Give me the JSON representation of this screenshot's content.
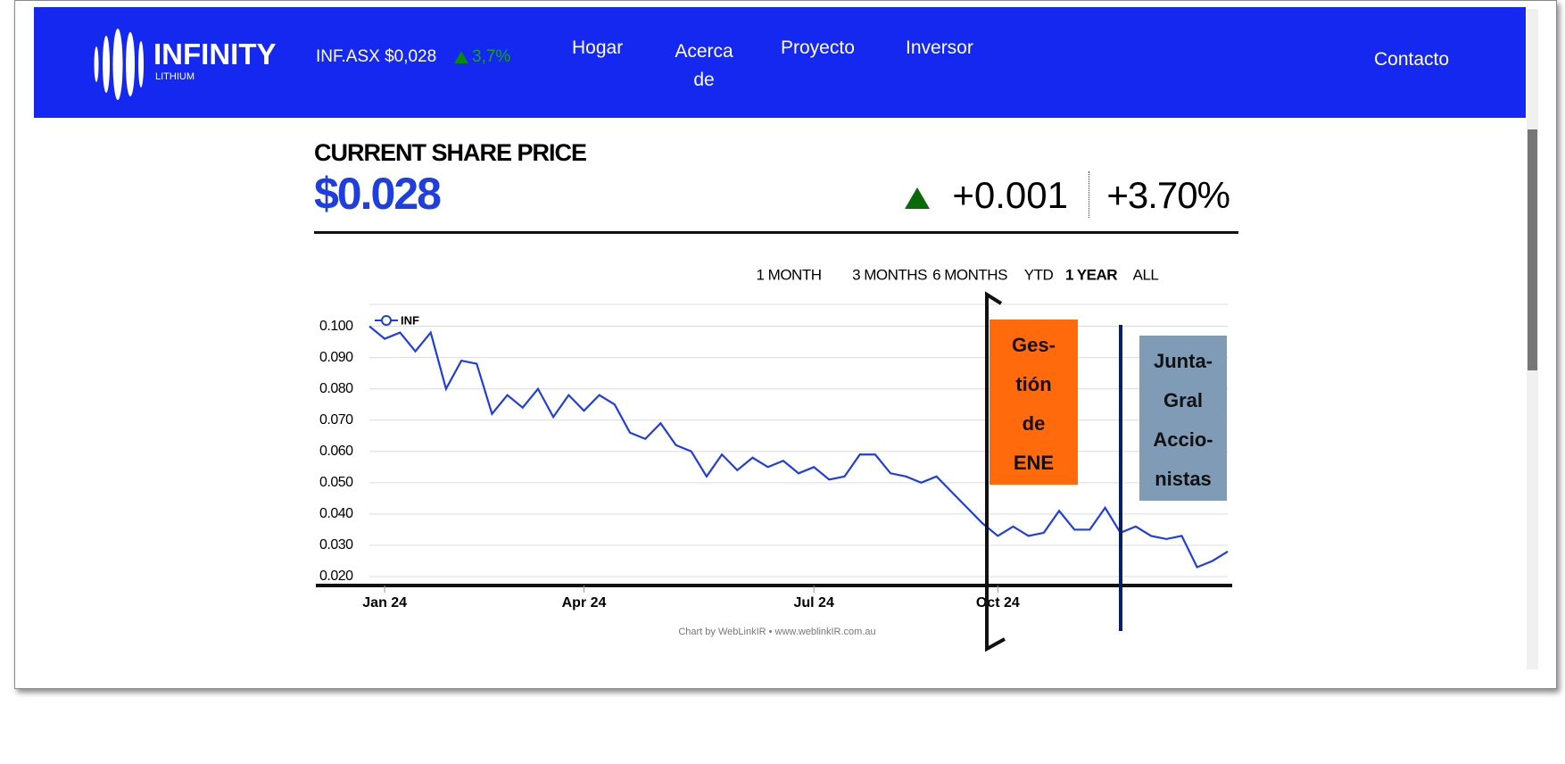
{
  "nav": {
    "logo": "INFINITY",
    "logo_sub": "LITHIUM",
    "ticker": "INF.ASX $0,028",
    "ticker_change": "3,7%",
    "links": [
      "Hogar",
      "Acerca de",
      "Proyecto",
      "Inversor"
    ],
    "contact": "Contacto"
  },
  "header": {
    "title": "CURRENT SHARE PRICE",
    "price": "$0.028",
    "change": "+0.001",
    "change_pct": "+3.70%"
  },
  "range_buttons": [
    "1 MONTH",
    "3 MONTHS",
    "6 MONTHS",
    "YTD",
    "1 YEAR",
    "ALL"
  ],
  "chart_data": {
    "type": "line",
    "x": [
      0,
      1,
      2,
      3,
      4,
      5,
      6,
      7,
      8,
      9,
      10,
      11,
      12,
      13,
      14,
      15,
      16,
      17,
      18,
      19,
      20,
      21,
      22,
      23,
      24,
      25,
      26,
      27,
      28,
      29,
      30,
      31,
      32,
      33,
      34,
      35,
      36,
      37,
      38,
      39,
      40,
      41,
      42,
      43,
      44,
      45,
      46,
      47,
      48,
      49,
      50,
      51,
      52,
      53,
      54,
      55,
      56
    ],
    "series": [
      {
        "name": "INF",
        "color": "#1f3ee0",
        "values": [
          0.1,
          0.096,
          0.098,
          0.092,
          0.098,
          0.08,
          0.089,
          0.088,
          0.072,
          0.078,
          0.074,
          0.08,
          0.071,
          0.078,
          0.073,
          0.078,
          0.075,
          0.066,
          0.064,
          0.069,
          0.062,
          0.06,
          0.052,
          0.059,
          0.054,
          0.058,
          0.055,
          0.057,
          0.053,
          0.055,
          0.051,
          0.052,
          0.059,
          0.059,
          0.053,
          0.052,
          0.05,
          0.052,
          0.047,
          0.042,
          0.037,
          0.033,
          0.036,
          0.033,
          0.034,
          0.041,
          0.035,
          0.035,
          0.042,
          0.034,
          0.036,
          0.033,
          0.032,
          0.033,
          0.023,
          0.025,
          0.028
        ]
      }
    ],
    "xlim": [
      0,
      56
    ],
    "xticks": [
      {
        "value": 1,
        "label": "Jan 24"
      },
      {
        "value": 14,
        "label": "Apr 24"
      },
      {
        "value": 29,
        "label": "Jul 24"
      },
      {
        "value": 41,
        "label": "Oct 24"
      }
    ],
    "ylim": [
      0.02,
      0.107
    ],
    "yticks": [
      {
        "value": 0.1,
        "label": "0.100"
      },
      {
        "value": 0.09,
        "label": "0.090"
      },
      {
        "value": 0.08,
        "label": "0.080"
      },
      {
        "value": 0.07,
        "label": "0.070"
      },
      {
        "value": 0.06,
        "label": "0.060"
      },
      {
        "value": 0.05,
        "label": "0.050"
      },
      {
        "value": 0.04,
        "label": "0.040"
      },
      {
        "value": 0.03,
        "label": "0.030"
      },
      {
        "value": 0.02,
        "label": "0.020"
      }
    ],
    "grid": true,
    "annotations": [
      {
        "lines": [
          "Ges-",
          "tión",
          "de",
          "ENE"
        ],
        "color": "#ff6a0d"
      },
      {
        "lines": [
          "Junta-",
          "Gral",
          "Accio-",
          "nistas"
        ],
        "color": "#7f9bb5"
      }
    ],
    "credit": "Chart by WebLinkIR • www.weblinkIR.com.au"
  }
}
